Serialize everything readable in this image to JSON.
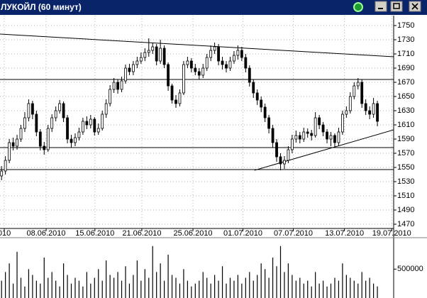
{
  "chart_data": {
    "type": "candlestick",
    "title": "ЛУКОЙЛ (60 минут)",
    "open": [
      1538,
      1545,
      1560,
      1585,
      1580,
      1590,
      1605,
      1620,
      1640,
      1625,
      1600,
      1580,
      1575,
      1605,
      1620,
      1630,
      1640,
      1620,
      1590,
      1585,
      1592,
      1600,
      1615,
      1610,
      1618,
      1600,
      1605,
      1625,
      1640,
      1660,
      1670,
      1660,
      1672,
      1690,
      1685,
      1695,
      1700,
      1705,
      1712,
      1715,
      1720,
      1700,
      1718,
      1695,
      1665,
      1645,
      1640,
      1655,
      1695,
      1700,
      1690,
      1685,
      1680,
      1690,
      1705,
      1715,
      1720,
      1700,
      1695,
      1690,
      1700,
      1708,
      1715,
      1705,
      1690,
      1670,
      1655,
      1645,
      1635,
      1620,
      1605,
      1585,
      1565,
      1555,
      1560,
      1575,
      1590,
      1595,
      1590,
      1600,
      1598,
      1595,
      1620,
      1610,
      1600,
      1590,
      1595,
      1585,
      1600,
      1625,
      1630,
      1650,
      1665,
      1670,
      1640,
      1630,
      1625,
      1640
    ],
    "high": [
      1552,
      1566,
      1590,
      1592,
      1596,
      1610,
      1628,
      1646,
      1644,
      1630,
      1604,
      1586,
      1610,
      1625,
      1636,
      1645,
      1643,
      1624,
      1596,
      1598,
      1606,
      1620,
      1622,
      1624,
      1621,
      1612,
      1630,
      1646,
      1666,
      1676,
      1674,
      1678,
      1695,
      1696,
      1700,
      1706,
      1712,
      1718,
      1732,
      1726,
      1724,
      1730,
      1722,
      1698,
      1668,
      1652,
      1660,
      1700,
      1706,
      1704,
      1696,
      1690,
      1696,
      1710,
      1722,
      1726,
      1724,
      1706,
      1700,
      1706,
      1714,
      1722,
      1720,
      1710,
      1694,
      1674,
      1660,
      1650,
      1640,
      1624,
      1610,
      1590,
      1570,
      1566,
      1580,
      1596,
      1602,
      1600,
      1606,
      1605,
      1603,
      1628,
      1624,
      1614,
      1604,
      1600,
      1598,
      1606,
      1630,
      1636,
      1656,
      1670,
      1676,
      1674,
      1646,
      1636,
      1648,
      1644
    ],
    "low": [
      1532,
      1540,
      1556,
      1574,
      1575,
      1586,
      1600,
      1615,
      1618,
      1594,
      1574,
      1568,
      1572,
      1600,
      1615,
      1626,
      1614,
      1584,
      1578,
      1580,
      1588,
      1596,
      1604,
      1605,
      1595,
      1596,
      1602,
      1620,
      1636,
      1655,
      1654,
      1656,
      1668,
      1680,
      1680,
      1690,
      1696,
      1700,
      1706,
      1710,
      1694,
      1696,
      1690,
      1658,
      1640,
      1634,
      1636,
      1652,
      1690,
      1684,
      1680,
      1674,
      1676,
      1686,
      1700,
      1710,
      1694,
      1688,
      1684,
      1686,
      1696,
      1702,
      1700,
      1684,
      1664,
      1648,
      1638,
      1628,
      1614,
      1598,
      1578,
      1558,
      1546,
      1548,
      1556,
      1570,
      1585,
      1584,
      1586,
      1592,
      1588,
      1592,
      1604,
      1594,
      1584,
      1580,
      1578,
      1580,
      1596,
      1620,
      1626,
      1646,
      1660,
      1634,
      1624,
      1618,
      1620,
      1608
    ],
    "close": [
      1545,
      1560,
      1585,
      1580,
      1590,
      1605,
      1620,
      1640,
      1625,
      1600,
      1580,
      1575,
      1605,
      1620,
      1630,
      1640,
      1620,
      1590,
      1585,
      1592,
      1600,
      1615,
      1610,
      1618,
      1600,
      1605,
      1625,
      1640,
      1660,
      1670,
      1660,
      1672,
      1690,
      1685,
      1695,
      1700,
      1705,
      1712,
      1715,
      1720,
      1700,
      1718,
      1695,
      1665,
      1645,
      1640,
      1655,
      1695,
      1700,
      1690,
      1685,
      1680,
      1690,
      1705,
      1715,
      1720,
      1700,
      1695,
      1690,
      1700,
      1708,
      1715,
      1705,
      1690,
      1670,
      1655,
      1645,
      1635,
      1620,
      1605,
      1585,
      1565,
      1555,
      1560,
      1575,
      1590,
      1595,
      1590,
      1600,
      1598,
      1595,
      1620,
      1610,
      1600,
      1590,
      1595,
      1585,
      1600,
      1625,
      1630,
      1650,
      1665,
      1670,
      1640,
      1630,
      1625,
      1640,
      1615
    ],
    "volume": [
      300000,
      450000,
      600000,
      250000,
      800000,
      350000,
      200000,
      500000,
      400000,
      300000,
      250000,
      700000,
      350000,
      450000,
      300000,
      200000,
      600000,
      400000,
      250000,
      350000,
      300000,
      200000,
      450000,
      250000,
      350000,
      500000,
      300000,
      650000,
      400000,
      350000,
      450000,
      300000,
      550000,
      250000,
      400000,
      650000,
      300000,
      500000,
      350000,
      900000,
      450000,
      600000,
      300000,
      750000,
      400000,
      350000,
      250000,
      500000,
      300000,
      200000,
      250000,
      300000,
      450000,
      350000,
      250000,
      400000,
      300000,
      550000,
      250000,
      350000,
      300000,
      400000,
      250000,
      350000,
      450000,
      300000,
      400000,
      600000,
      500000,
      350000,
      700000,
      550000,
      900000,
      450000,
      600000,
      400000,
      300000,
      350000,
      250000,
      300000,
      200000,
      450000,
      250000,
      300000,
      200000,
      250000,
      350000,
      300000,
      600000,
      400000,
      350000,
      300000,
      250000,
      450000,
      300000,
      350000,
      250000,
      200000
    ],
    "xlim": [
      -0.4,
      101.2
    ],
    "xticks": [
      {
        "value": 0.7,
        "label": "010"
      },
      {
        "value": 11.5,
        "label": "08.06.2010"
      },
      {
        "value": 24.1,
        "label": "15.06.2010"
      },
      {
        "value": 36.2,
        "label": "21.06.2010"
      },
      {
        "value": 49.4,
        "label": "25.06.2010"
      },
      {
        "value": 62.3,
        "label": "01.07.2010"
      },
      {
        "value": 75.3,
        "label": "07.07.2010"
      },
      {
        "value": 88.5,
        "label": "13.07.2010"
      },
      {
        "value": 100.7,
        "label": "19.07.2010"
      }
    ],
    "ylim": [
      1464,
      1764
    ],
    "yticks": [
      1470,
      1490,
      1510,
      1530,
      1550,
      1570,
      1590,
      1610,
      1630,
      1650,
      1670,
      1690,
      1710,
      1730,
      1750
    ],
    "volume_lim": [
      0,
      1020000
    ],
    "volume_ticks": [
      500000
    ],
    "hlines": [
      1674,
      1578,
      1547
    ],
    "trendlines": [
      [
        [
          -0.4,
          1738
        ],
        [
          101.2,
          1706
        ]
      ],
      [
        [
          65.3,
          1546
        ],
        [
          101.2,
          1603
        ]
      ]
    ],
    "grid": true
  }
}
